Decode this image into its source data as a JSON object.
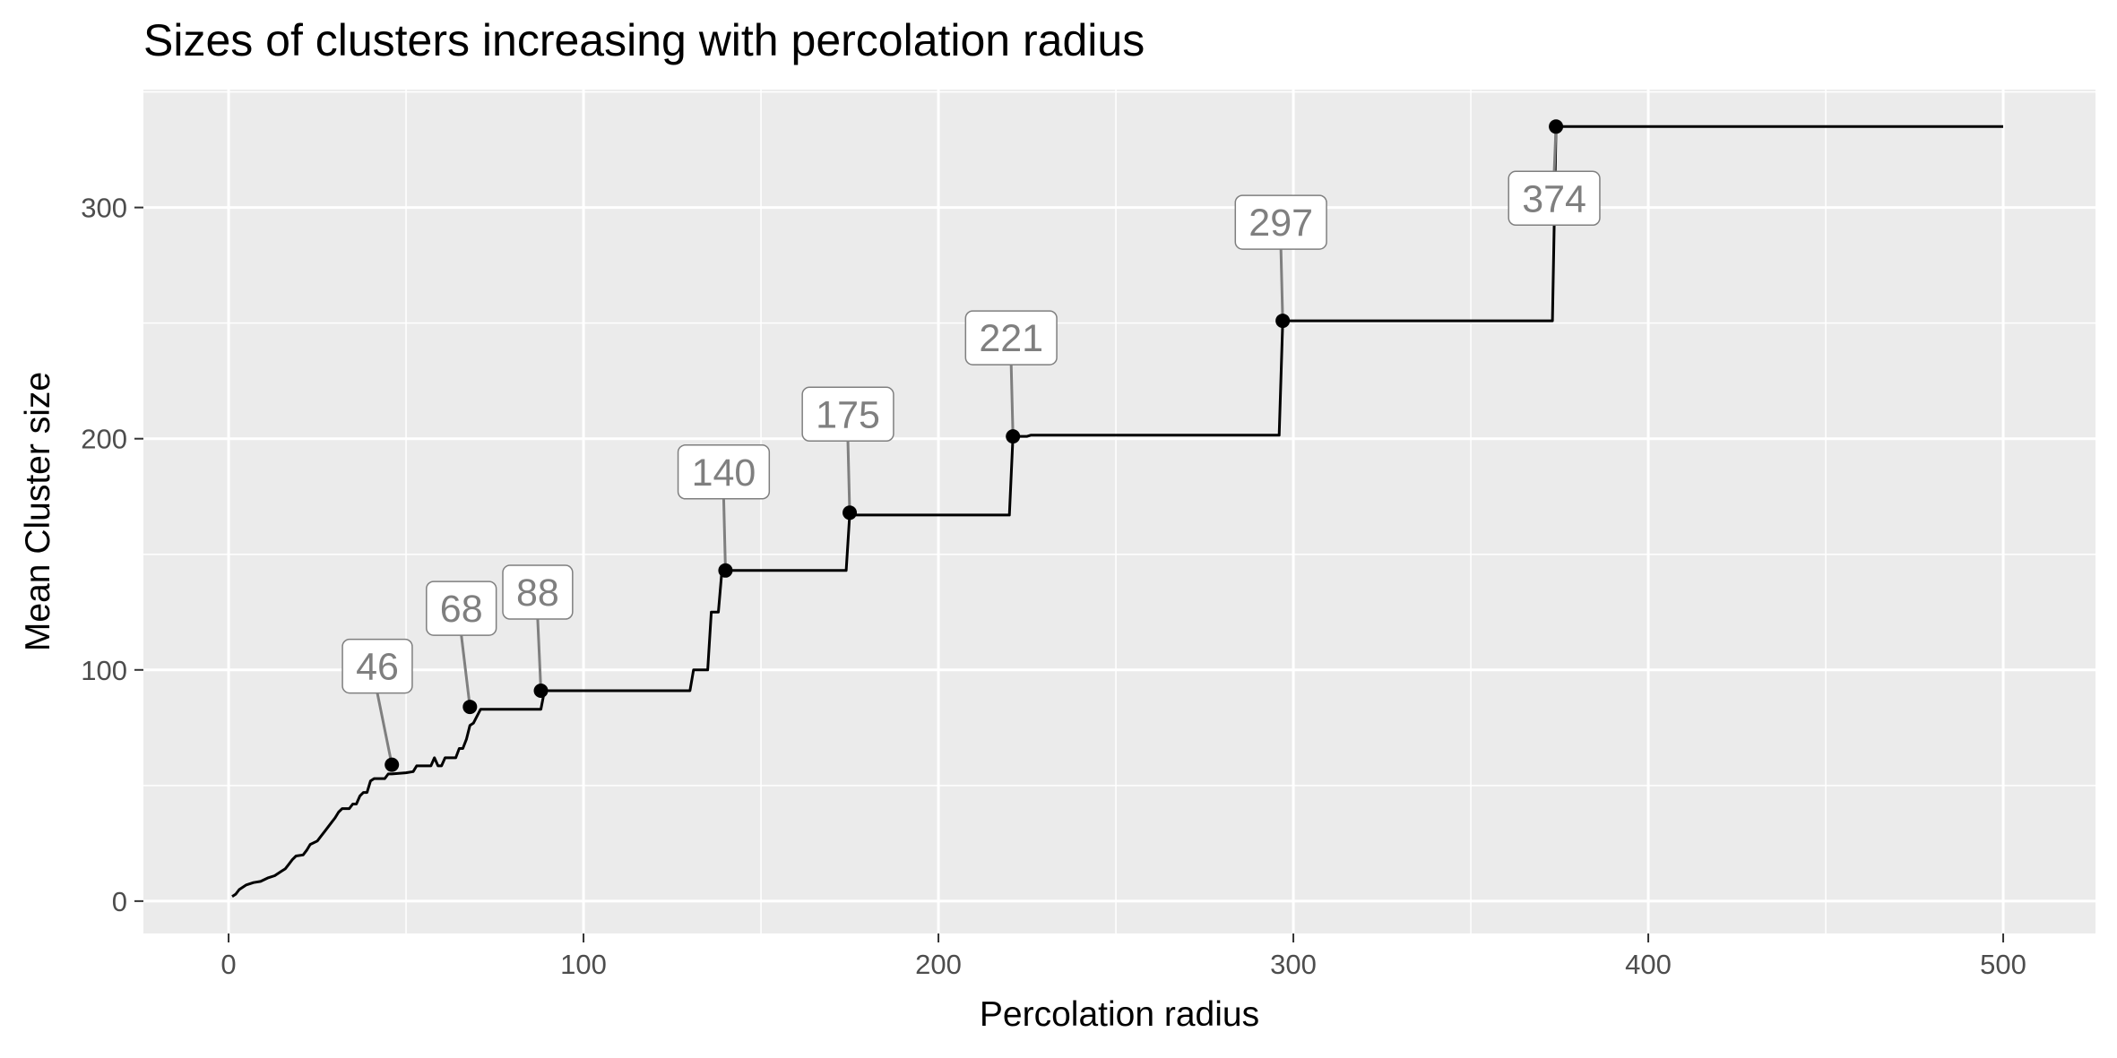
{
  "chart_data": {
    "type": "line",
    "title": "Sizes of clusters increasing with percolation radius",
    "xlabel": "Percolation radius",
    "ylabel": "Mean Cluster size",
    "xlim": [
      -24,
      526
    ],
    "ylim": [
      -14,
      351
    ],
    "x_ticks": [
      0,
      100,
      200,
      300,
      400,
      500
    ],
    "y_ticks": [
      0,
      100,
      200,
      300
    ],
    "x_tick_labels": [
      "0",
      "100",
      "200",
      "300",
      "400",
      "500"
    ],
    "y_tick_labels": [
      "0",
      "100",
      "200",
      "300"
    ],
    "grid": true,
    "legend": "none",
    "series": [
      {
        "points": [
          [
            1,
            2
          ],
          [
            2,
            3
          ],
          [
            3,
            5
          ],
          [
            5,
            7
          ],
          [
            7,
            8
          ],
          [
            9,
            8.5
          ],
          [
            11,
            10
          ],
          [
            13,
            11
          ],
          [
            15,
            13
          ],
          [
            16,
            14
          ],
          [
            17,
            16
          ],
          [
            18,
            18
          ],
          [
            19,
            19.5
          ],
          [
            21,
            20
          ],
          [
            22,
            22
          ],
          [
            23,
            24.5
          ],
          [
            25,
            26
          ],
          [
            26,
            28
          ],
          [
            27,
            30
          ],
          [
            28,
            32
          ],
          [
            29,
            34
          ],
          [
            30,
            36
          ],
          [
            31,
            38.5
          ],
          [
            32,
            40
          ],
          [
            34,
            40
          ],
          [
            35,
            42
          ],
          [
            36,
            42
          ],
          [
            37,
            45.5
          ],
          [
            38,
            47
          ],
          [
            39,
            47
          ],
          [
            40,
            52
          ],
          [
            41,
            53
          ],
          [
            44,
            53
          ],
          [
            45,
            55
          ],
          [
            46,
            55
          ],
          [
            50,
            55.5
          ],
          [
            52,
            56
          ],
          [
            53,
            58.5
          ],
          [
            57,
            58.5
          ],
          [
            58,
            62
          ],
          [
            59,
            58.5
          ],
          [
            60,
            58.5
          ],
          [
            61,
            62
          ],
          [
            64,
            62
          ],
          [
            65,
            66
          ],
          [
            66,
            66
          ],
          [
            67,
            70
          ],
          [
            68,
            76
          ],
          [
            69,
            77
          ],
          [
            70,
            80
          ],
          [
            71,
            83
          ],
          [
            73,
            83
          ],
          [
            88,
            83
          ],
          [
            89,
            91
          ],
          [
            90,
            91
          ],
          [
            130,
            91
          ],
          [
            131,
            100
          ],
          [
            135,
            100
          ],
          [
            136,
            125
          ],
          [
            138,
            125
          ],
          [
            139,
            143
          ],
          [
            140,
            143
          ],
          [
            174,
            143
          ],
          [
            175,
            167
          ],
          [
            176,
            167
          ],
          [
            220,
            167
          ],
          [
            221,
            201
          ],
          [
            225,
            201
          ],
          [
            226,
            201.5
          ],
          [
            230,
            201.5
          ],
          [
            296,
            201.5
          ],
          [
            297,
            251
          ],
          [
            298,
            251
          ],
          [
            373,
            251
          ],
          [
            374,
            335
          ],
          [
            375,
            335
          ],
          [
            500,
            335
          ]
        ]
      }
    ],
    "points": [
      {
        "x": 46,
        "y": 59
      },
      {
        "x": 68,
        "y": 84
      },
      {
        "x": 88,
        "y": 91
      },
      {
        "x": 140,
        "y": 143
      },
      {
        "x": 175,
        "y": 168
      },
      {
        "x": 221,
        "y": 201
      },
      {
        "x": 297,
        "y": 251
      },
      {
        "x": 374,
        "y": 335
      }
    ],
    "annotations": [
      {
        "text": "46",
        "x": 46,
        "y": 59
      },
      {
        "text": "68",
        "x": 68,
        "y": 84
      },
      {
        "text": "88",
        "x": 88,
        "y": 91
      },
      {
        "text": "140",
        "x": 140,
        "y": 143
      },
      {
        "text": "175",
        "x": 175,
        "y": 168
      },
      {
        "text": "221",
        "x": 221,
        "y": 201
      },
      {
        "text": "297",
        "x": 297,
        "y": 251
      },
      {
        "text": "374",
        "x": 374,
        "y": 335
      }
    ],
    "colors": {
      "panel_background": "#ebebeb",
      "grid": "#ffffff",
      "line": "#000000",
      "point": "#000000",
      "label_text": "#7f7f7f",
      "label_border": "#7f7f7f",
      "connector": "#7f7f7f",
      "tick_text": "#4d4d4d"
    }
  }
}
